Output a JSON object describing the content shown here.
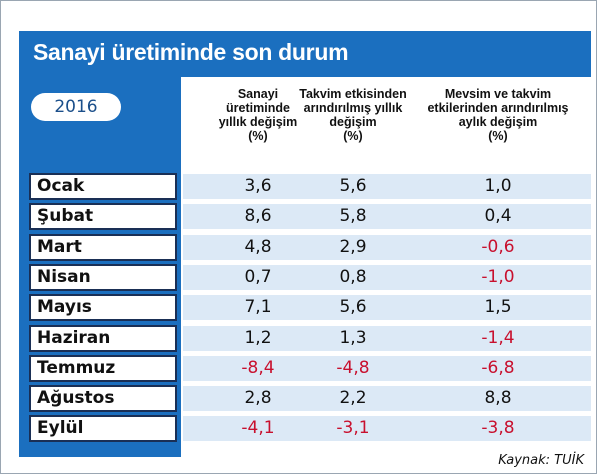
{
  "header": {
    "title": "Sanayi üretiminde son durum",
    "year": "2016"
  },
  "table": {
    "columns": [
      [
        "Sanayi",
        "üretiminde",
        "yıllık değişim",
        "(%)"
      ],
      [
        "Takvim etkisinden",
        "arındırılmış yıllık",
        "değişim",
        "(%)"
      ],
      [
        "Mevsim ve takvim",
        "etkilerinden arındırılmış",
        "aylık değişim",
        "(%)"
      ]
    ],
    "rows": [
      [
        "Ocak",
        "3,6",
        "5,6",
        "1,0"
      ],
      [
        "Şubat",
        "8,6",
        "5,8",
        "0,4"
      ],
      [
        "Mart",
        "4,8",
        "2,9",
        "-0,6"
      ],
      [
        "Nisan",
        "0,7",
        "0,8",
        "-1,0"
      ],
      [
        "Mayıs",
        "7,1",
        "5,6",
        "1,5"
      ],
      [
        "Haziran",
        "1,2",
        "1,3",
        "-1,4"
      ],
      [
        "Temmuz",
        "-8,4",
        "-4,8",
        "-6,8"
      ],
      [
        "Ağustos",
        "2,8",
        "2,2",
        "8,8"
      ],
      [
        "Eylül",
        "-4,1",
        "-3,1",
        "-3,8"
      ]
    ]
  },
  "source": "Kaynak: TUİK"
}
